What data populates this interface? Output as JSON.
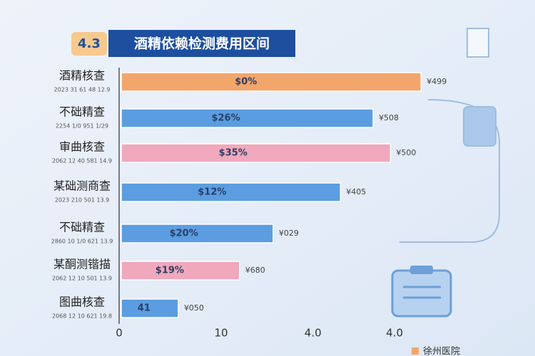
{
  "chart_data": {
    "type": "hbar",
    "badge": "4.3",
    "title": "酒精依赖检测费用区间",
    "categories": [
      "酒精核查",
      "不础精查",
      "审曲核查",
      "某础测商查",
      "不础精查",
      "某酮测锴描",
      "图曲核查"
    ],
    "sublabels": [
      "2023 31 61 48 12.9",
      "2254 1/0 951 1/29",
      "2062 12 40 581 14.9",
      "2023 210 501 13.9",
      "2860 10 1/0 621 13.9",
      "2062 12 10 501 13.9",
      "2068 12 10 621 19.8"
    ],
    "values": [
      29.6,
      24.9,
      26.6,
      21.7,
      15.1,
      11.8,
      5.8
    ],
    "value_labels": [
      "$0%",
      "$26%",
      "$35%",
      "$12%",
      "$20%",
      "$19%",
      "41"
    ],
    "cost_labels": [
      "¥499",
      "¥508",
      "¥500",
      "¥405",
      "¥029",
      "¥680",
      "¥050"
    ],
    "colors": [
      "#f2a66b",
      "#5b9de0",
      "#f0a8bc",
      "#5b9de0",
      "#5b9de0",
      "#f0a8bc",
      "#5b9de0"
    ],
    "xlim": [
      0,
      30
    ],
    "xticks": [
      0,
      10,
      {
        "value": 19,
        "label": "4.0"
      },
      {
        "value": 27,
        "label": "4.0"
      }
    ],
    "footer": "徐州医院"
  }
}
